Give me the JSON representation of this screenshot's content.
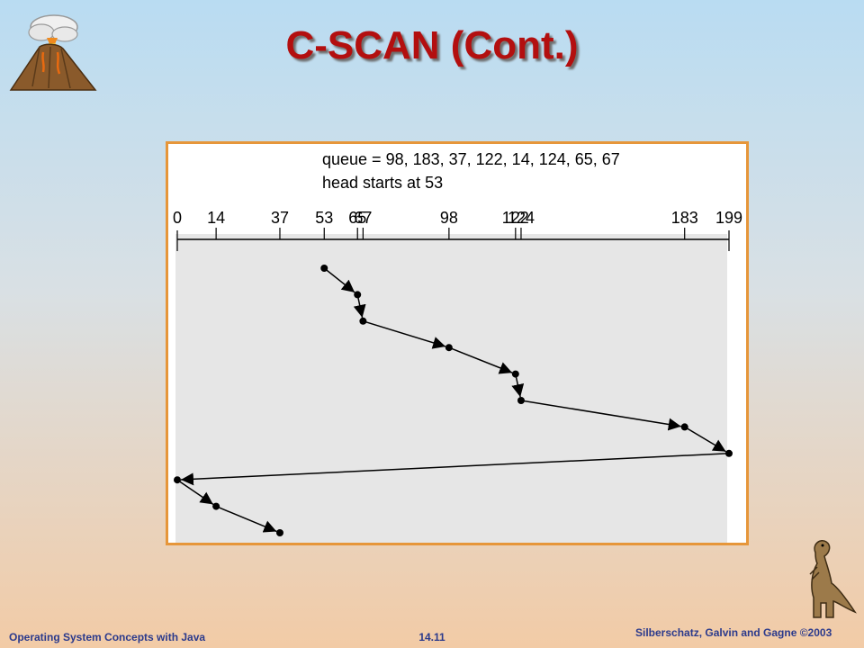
{
  "slide": {
    "title": "C-SCAN (Cont.)",
    "footer_left": "Operating System Concepts with Java",
    "footer_center": "14.11",
    "footer_right": "Silberschatz, Galvin and Gagne ©2003"
  },
  "diagram": {
    "queue_line": "queue = 98, 183, 37, 122, 14, 124, 65, 67",
    "head_line": "head starts at 53",
    "axis_min": 0,
    "axis_max": 199,
    "ticks": [
      0,
      14,
      37,
      53,
      65,
      67,
      98,
      122,
      124,
      183,
      199
    ],
    "tick_labels": [
      "0",
      "14",
      "37",
      "53",
      "65",
      "67",
      "98",
      "122",
      "124",
      "183",
      "199"
    ],
    "service_order": [
      53,
      65,
      67,
      98,
      122,
      124,
      183,
      199,
      0,
      14,
      37
    ],
    "colors": {
      "frame_border": "#e6963a",
      "plot_background": "#e6e6e6",
      "ink": "#000000",
      "title": "#b30f0f",
      "footer": "#2b3a8c"
    }
  }
}
